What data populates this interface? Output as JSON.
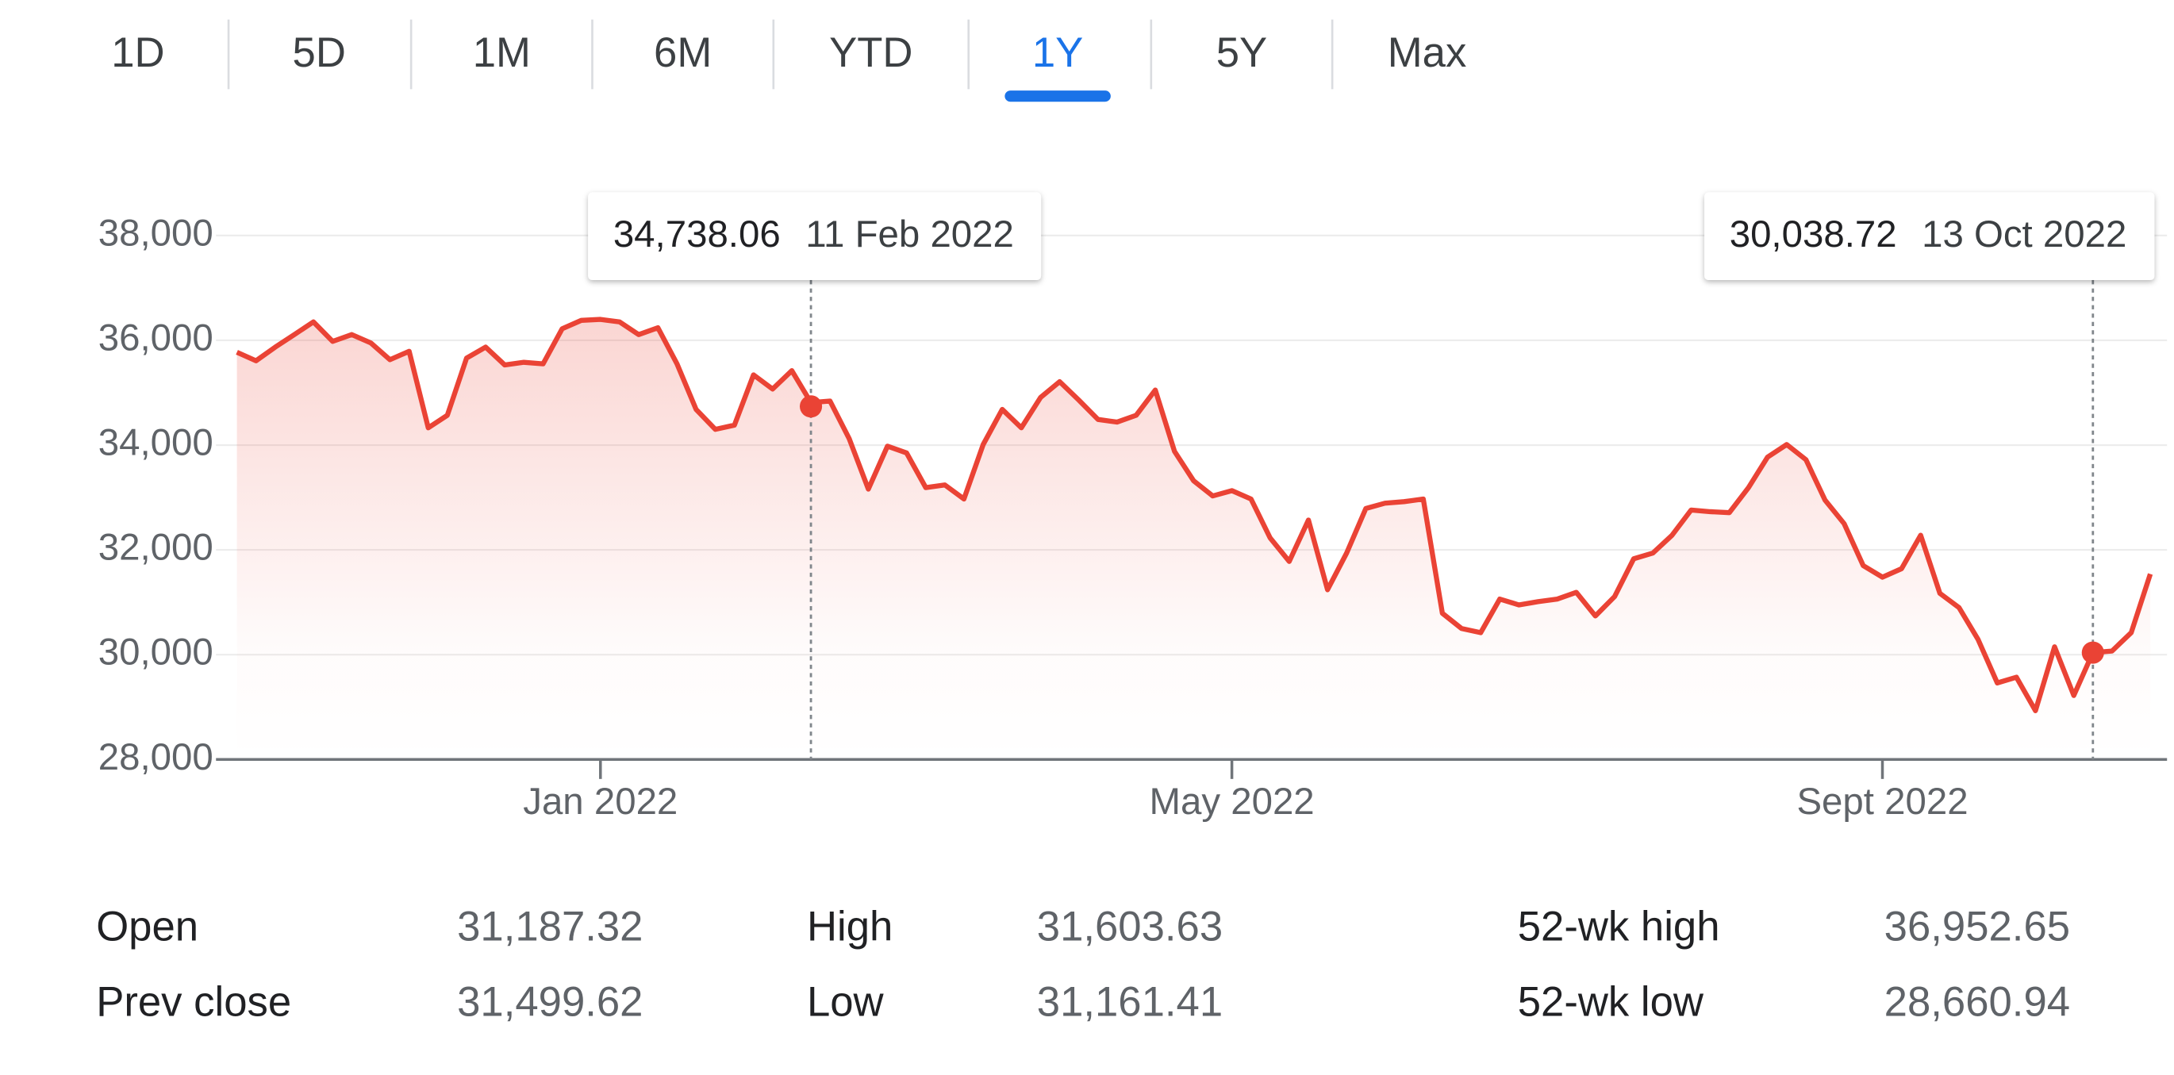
{
  "tabs": [
    {
      "label": "1D"
    },
    {
      "label": "5D"
    },
    {
      "label": "1M"
    },
    {
      "label": "6M"
    },
    {
      "label": "YTD"
    },
    {
      "label": "1Y",
      "active": true
    },
    {
      "label": "5Y"
    },
    {
      "label": "Max"
    }
  ],
  "chart_data": {
    "type": "line",
    "color": "#ea4335",
    "grid": true,
    "categories": [
      null,
      null,
      null,
      null,
      null,
      null,
      null,
      null,
      null,
      null,
      null,
      null,
      null,
      null,
      null,
      null,
      null,
      null,
      null,
      "Jan 2022",
      null,
      null,
      null,
      null,
      null,
      null,
      null,
      null,
      null,
      null,
      null,
      null,
      null,
      null,
      null,
      null,
      null,
      null,
      null,
      null,
      null,
      null,
      null,
      null,
      null,
      null,
      null,
      null,
      null,
      null,
      null,
      null,
      "May 2022",
      null,
      null,
      null,
      null,
      null,
      null,
      null,
      null,
      null,
      null,
      null,
      null,
      null,
      null,
      null,
      null,
      null,
      null,
      null,
      null,
      null,
      null,
      null,
      null,
      null,
      null,
      null,
      null,
      null,
      null,
      null,
      null,
      null,
      "Sept 2022",
      null,
      null,
      null,
      null,
      null,
      null,
      null,
      null,
      null,
      null,
      null,
      null,
      null,
      null
    ],
    "values": [
      35770,
      35610,
      35870,
      36110,
      36350,
      35980,
      36110,
      35950,
      35630,
      35790,
      34330,
      34570,
      35660,
      35870,
      35530,
      35580,
      35550,
      36220,
      36380,
      36400,
      36350,
      36110,
      36240,
      35550,
      34680,
      34300,
      34380,
      35340,
      35070,
      35420,
      34810,
      34840,
      34120,
      33160,
      33980,
      33850,
      33190,
      33240,
      32970,
      34010,
      34680,
      34330,
      34910,
      35210,
      34860,
      34490,
      34440,
      34570,
      35050,
      33880,
      33320,
      33030,
      33130,
      32970,
      32230,
      31780,
      32570,
      31240,
      31940,
      32790,
      32890,
      32920,
      32970,
      30790,
      30500,
      30420,
      31060,
      30950,
      31010,
      31060,
      31190,
      30740,
      31110,
      31830,
      31940,
      32280,
      32760,
      32730,
      32710,
      33190,
      33770,
      34010,
      33720,
      32950,
      32500,
      31700,
      31480,
      31640,
      32280,
      31170,
      30900,
      30290,
      29460,
      29570,
      28930,
      30150,
      29220,
      30040,
      30070,
      30420,
      31540
    ],
    "ylim": [
      28000,
      38000
    ],
    "yticks": [
      {
        "value": 28000,
        "label": "28,000"
      },
      {
        "value": 30000,
        "label": "30,000"
      },
      {
        "value": 32000,
        "label": "32,000"
      },
      {
        "value": 34000,
        "label": "34,000"
      },
      {
        "value": 36000,
        "label": "36,000"
      },
      {
        "value": 38000,
        "label": "38,000"
      }
    ],
    "annotations": [
      {
        "value": 34738.06,
        "label": "34,738.06",
        "date": "11 Feb 2022"
      },
      {
        "value": 30038.72,
        "label": "30,038.72",
        "date": "13 Oct 2022"
      }
    ]
  },
  "stats": [
    {
      "label": "Open",
      "value": "31,187.32"
    },
    {
      "label": "Prev close",
      "value": "31,499.62"
    },
    {
      "label": "High",
      "value": "31,603.63"
    },
    {
      "label": "Low",
      "value": "31,161.41"
    },
    {
      "label": "52-wk high",
      "value": "36,952.65"
    },
    {
      "label": "52-wk low",
      "value": "28,660.94"
    }
  ]
}
